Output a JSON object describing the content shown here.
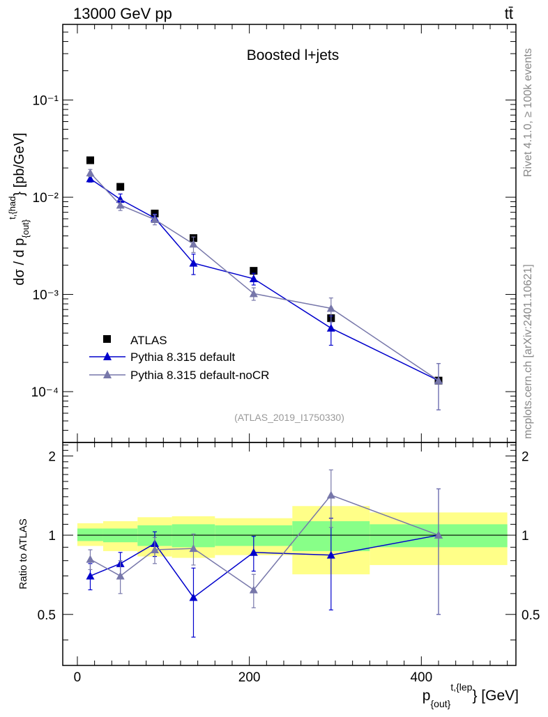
{
  "header": {
    "left": "13000 GeV pp",
    "right": "tt̄"
  },
  "side_text": {
    "rivet": "Rivet 4.1.0, ≥ 100k events",
    "mcplots": "mcplots.cern.ch [arXiv:2401.10621]"
  },
  "chart_data": {
    "type": "line",
    "title": "Boosted l+jets",
    "analysis_id": "(ATLAS_2019_I1750330)",
    "xlabel": {
      "base": "p",
      "sub": "{out}",
      "sup": "t,{lep",
      "suffix": "} [GeV]"
    },
    "ylabel": {
      "prefix": "dσ / d p",
      "sub": "{out}",
      "sup": "t,{had",
      "suffix": "} [pb/GeV]"
    },
    "ratio_ylabel": "Ratio to ATLAS",
    "x_range": [
      -17,
      510
    ],
    "y_range_log": [
      3e-05,
      0.6
    ],
    "ratio_range": [
      0.32,
      2.25
    ],
    "x_ticks": [
      "0",
      "200",
      "400"
    ],
    "y_ticks": [
      "10⁻⁴",
      "10⁻³",
      "10⁻²",
      "10⁻¹"
    ],
    "ratio_ticks": [
      "0.5",
      "1",
      "2"
    ],
    "legend_position": "lower-left",
    "bins": [
      {
        "lo": 0,
        "hi": 30,
        "center": 15
      },
      {
        "lo": 30,
        "hi": 70,
        "center": 50
      },
      {
        "lo": 70,
        "hi": 110,
        "center": 90
      },
      {
        "lo": 110,
        "hi": 160,
        "center": 135
      },
      {
        "lo": 160,
        "hi": 250,
        "center": 205
      },
      {
        "lo": 250,
        "hi": 340,
        "center": 295
      },
      {
        "lo": 340,
        "hi": 500,
        "center": 420
      }
    ],
    "series": [
      {
        "name": "ATLAS",
        "color": "#000000",
        "marker": "square",
        "values": [
          0.024,
          0.0128,
          0.0068,
          0.0038,
          0.00175,
          0.00057,
          0.00013
        ]
      },
      {
        "name": "Pythia 8.315 default",
        "color": "#0000cc",
        "marker": "triangle",
        "values": [
          0.0155,
          0.0095,
          0.0061,
          0.0021,
          0.00145,
          0.00045,
          0.00013
        ],
        "err_lo": [
          0.0012,
          0.0013,
          0.0006,
          0.0005,
          0.0002,
          0.00015,
          6.5e-05
        ],
        "err_hi": [
          0.0012,
          0.0013,
          0.0006,
          0.0005,
          0.0002,
          0.00015,
          6.5e-05
        ]
      },
      {
        "name": "Pythia 8.315 default-noCR",
        "color": "#7777aa",
        "marker": "triangle",
        "values": [
          0.0178,
          0.0083,
          0.0059,
          0.0033,
          0.00102,
          0.00072,
          0.00013
        ],
        "err_lo": [
          0.0015,
          0.001,
          0.0007,
          0.0006,
          0.00015,
          0.0002,
          6.5e-05
        ],
        "err_hi": [
          0.0015,
          0.001,
          0.0007,
          0.0006,
          0.00015,
          0.0002,
          6.5e-05
        ]
      }
    ],
    "ratio": {
      "bands": [
        {
          "green": [
            0.95,
            1.06
          ],
          "yellow": [
            0.91,
            1.11
          ]
        },
        {
          "green": [
            0.94,
            1.06
          ],
          "yellow": [
            0.87,
            1.13
          ]
        },
        {
          "green": [
            0.91,
            1.09
          ],
          "yellow": [
            0.83,
            1.17
          ]
        },
        {
          "green": [
            0.9,
            1.1
          ],
          "yellow": [
            0.82,
            1.18
          ]
        },
        {
          "green": [
            0.91,
            1.09
          ],
          "yellow": [
            0.84,
            1.16
          ]
        },
        {
          "green": [
            0.87,
            1.13
          ],
          "yellow": [
            0.71,
            1.29
          ]
        },
        {
          "green": [
            0.9,
            1.1
          ],
          "yellow": [
            0.77,
            1.22
          ]
        }
      ],
      "series": [
        {
          "name": "Pythia 8.315 default",
          "values": [
            0.7,
            0.78,
            0.93,
            0.58,
            0.86,
            0.84,
            1.0
          ],
          "err": [
            0.08,
            0.08,
            0.1,
            0.17,
            0.13,
            0.32,
            0.5
          ]
        },
        {
          "name": "Pythia 8.315 default-noCR",
          "values": [
            0.81,
            0.7,
            0.88,
            0.89,
            0.62,
            1.42,
            1.0
          ],
          "err": [
            0.07,
            0.1,
            0.1,
            0.12,
            0.09,
            0.35,
            0.5
          ]
        }
      ]
    }
  }
}
